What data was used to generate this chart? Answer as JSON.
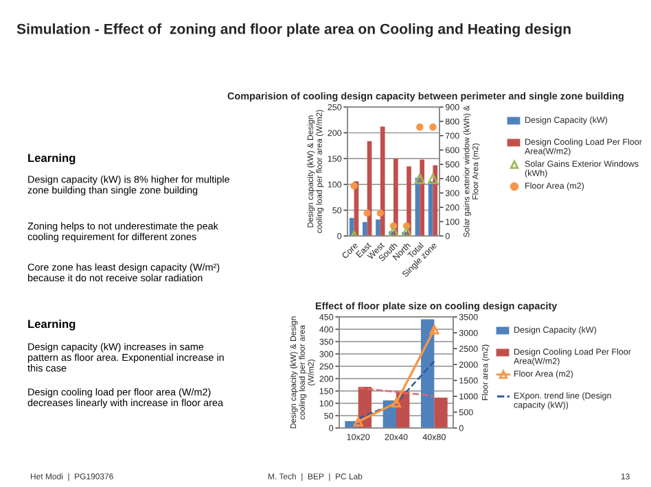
{
  "chart_data": [
    {
      "type": "other",
      "title": "Simulation - Effect of  zoning and floor plate area on Cooling and Heating design",
      "annotations": [
        "Learning",
        "Design capacity (kW) is 8% higher for multiple zone building than single zone building",
        "Zoning helps to not underestimate the peak cooling requirement for different zones",
        "Core zone has least design capacity (W/m²) because it do not receive solar radiation",
        "Learning",
        "Design capacity (kW) increases in same pattern as floor area. Exponential increase in this case",
        "Design cooling load per floor area (W/m2) decreases linearly with increase in floor area",
        "Het Modi  |  PG190376",
        "M. Tech  |  BEP  |  PC Lab",
        "13"
      ]
    },
    {
      "type": "bar",
      "title": "Comparision of cooling design capacity between perimeter and single zone building",
      "ylabel": "Design capacity (kW) & Design cooling load per floor area (W/m2)",
      "y2label": "Solar gains exterior window (kWh) & Floor Area (m2)",
      "categories": [
        "Core",
        "East",
        "West",
        "South",
        "North",
        "Total",
        "Single zone"
      ],
      "series": [
        {
          "name": "Design Capacity (kW)",
          "color": "#4f81bd",
          "values": [
            35,
            27,
            32,
            9,
            8,
            113,
            106
          ]
        },
        {
          "name": "Design Cooling Load Per Floor Area(W/m2)",
          "color": "#c0504d",
          "values": [
            106,
            184,
            212,
            150,
            135,
            148,
            137
          ]
        },
        {
          "name": "Solar Gains Exterior Windows (kWh)",
          "type": "scatter",
          "axis": "y2",
          "marker": "triangle",
          "color": "#9bbb59",
          "values": [
            0,
            null,
            null,
            30,
            30,
            400,
            400
          ]
        },
        {
          "name": "Floor Area (m2)",
          "type": "scatter",
          "axis": "y2",
          "marker": "circle",
          "color": "#f79646",
          "values": [
            350,
            160,
            160,
            70,
            70,
            760,
            760
          ]
        }
      ],
      "ylim": [
        0,
        250
      ],
      "yticks": [
        0,
        50,
        100,
        150,
        200,
        250
      ],
      "y2lim": [
        0,
        900
      ],
      "y2ticks": [
        0,
        100,
        200,
        300,
        400,
        500,
        600,
        700,
        800,
        900
      ],
      "grid": "y",
      "legend": "right"
    },
    {
      "type": "bar",
      "title": "Effect of floor plate size on cooling design capacity",
      "ylabel": "Design capacity (kW) & Design cooling load per floor area (W/m2)",
      "y2label": "Floor area (m2)",
      "categories": [
        "10x20",
        "20x40",
        "40x80"
      ],
      "series": [
        {
          "name": "Design Capacity (kW)",
          "color": "#4f81bd",
          "values": [
            28,
            112,
            440
          ]
        },
        {
          "name": "Design Cooling Load Per Floor Area(W/m2)",
          "color": "#c0504d",
          "values": [
            167,
            147,
            123
          ]
        },
        {
          "name": "Floor Area (m2)",
          "type": "line",
          "axis": "y2",
          "marker": "triangle",
          "line_style": "solid",
          "color": "#f79646",
          "values": [
            200,
            800,
            3100
          ]
        },
        {
          "name": "EXpon. trend line (Design capacity (kW))",
          "type": "line",
          "line_style": "dashed",
          "marker": "none",
          "color": "#2c5aa0",
          "values": [
            38,
            102,
            270
          ]
        },
        {
          "type": "line",
          "line_style": "dashed",
          "marker": "none",
          "color": "#e06666",
          "values": [
            162,
            146,
            130
          ]
        }
      ],
      "ylim": [
        0,
        450
      ],
      "yticks": [
        0,
        50,
        100,
        150,
        200,
        250,
        300,
        350,
        400,
        450
      ],
      "y2lim": [
        0,
        3500
      ],
      "y2ticks": [
        0,
        500,
        1000,
        1500,
        2000,
        2500,
        3000,
        3500
      ],
      "grid": "y",
      "legend": "right"
    }
  ]
}
